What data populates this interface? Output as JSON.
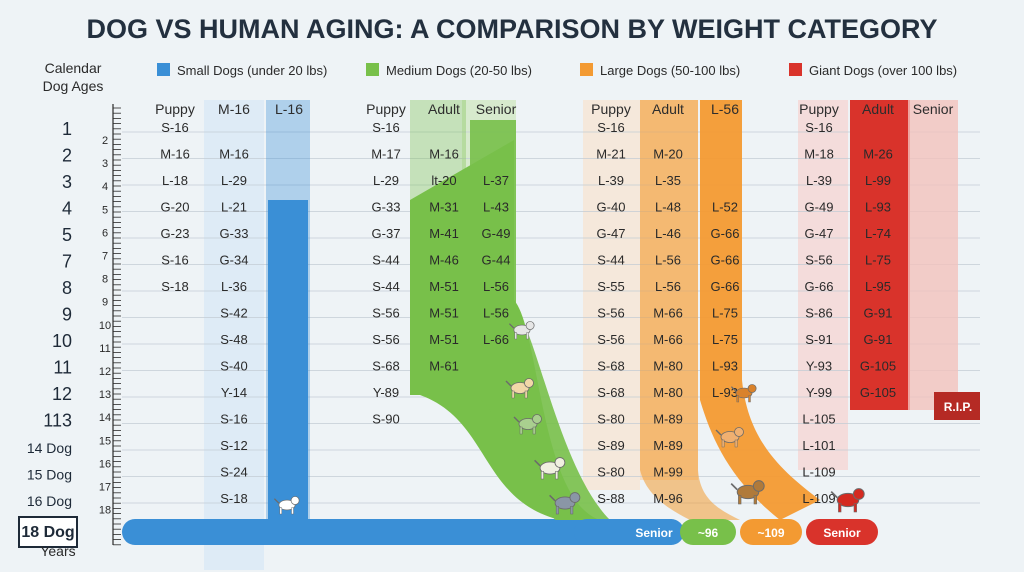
{
  "chart_data": {
    "type": "table",
    "title": "DOG VS HUMAN AGING: A COMPARISON BY WEIGHT CATEGORY",
    "y_axis_label": [
      "Calendar",
      "Dog Ages"
    ],
    "y_axis_bottom": [
      "18 Dog",
      "Years"
    ],
    "row_labels": [
      "1",
      "2",
      "3",
      "4",
      "5",
      "7",
      "8",
      "9",
      "10",
      "11",
      "12",
      "113",
      "14 Dog",
      "15 Dog",
      "16 Dog"
    ],
    "ruler_ticks": [
      "2",
      "3",
      "4",
      "5",
      "6",
      "7",
      "8",
      "9",
      "10",
      "11",
      "12",
      "13",
      "14",
      "15",
      "16",
      "17",
      "18"
    ],
    "legend": [
      {
        "label": "Small Dogs (under 20 lbs)",
        "color": "#3a8fd6"
      },
      {
        "label": "Medium Dogs (20-50 lbs)",
        "color": "#78c04a"
      },
      {
        "label": "Large Dogs (50-100 lbs)",
        "color": "#f39a32"
      },
      {
        "label": "Giant Dogs (over 100 lbs)",
        "color": "#d9332b"
      }
    ],
    "groups": [
      {
        "name": "Small Dogs (under 20 lbs)",
        "color": "#3a8fd6",
        "columns": [
          {
            "header": "Puppy",
            "values": [
              "S-16",
              "M-16",
              "L-18",
              "G-20",
              "G-23",
              "S-16",
              "S-18"
            ]
          },
          {
            "header": "M-16",
            "values": [
              "",
              "M-16",
              "L-29",
              "L-21",
              "G-33",
              "G-34",
              "L-36",
              "S-42",
              "S-48",
              "S-40",
              "Y-14",
              "S-16",
              "S-12",
              "S-24",
              "S-18"
            ]
          },
          {
            "header": "L-16",
            "values": []
          }
        ]
      },
      {
        "name": "Medium Dogs (20-50 lbs)",
        "color": "#78c04a",
        "columns": [
          {
            "header": "Puppy",
            "values": [
              "S-16",
              "M-17",
              "L-29",
              "G-33",
              "G-37",
              "S-44",
              "S-44",
              "S-56",
              "S-56",
              "S-68",
              "Y-89",
              "S-90"
            ]
          },
          {
            "header": "Adult",
            "values": [
              "",
              "M-16",
              "lt-20",
              "M-31",
              "M-41",
              "M-46",
              "M-51",
              "M-51",
              "M-51",
              "M-61"
            ]
          },
          {
            "header": "Senior",
            "values": [
              "",
              "",
              "L-37",
              "L-43",
              "G-49",
              "G-44",
              "L-56",
              "L-56",
              "L-66"
            ]
          }
        ]
      },
      {
        "name": "Large Dogs (50-100 lbs)",
        "color": "#f39a32",
        "columns": [
          {
            "header": "Puppy",
            "values": [
              "S-16",
              "M-21",
              "L-39",
              "G-40",
              "G-47",
              "S-44",
              "S-55",
              "S-56",
              "S-56",
              "S-68",
              "S-68",
              "S-80",
              "S-89",
              "S-80",
              "S-88"
            ]
          },
          {
            "header": "Adult",
            "values": [
              "",
              "M-20",
              "L-35",
              "L-48",
              "L-46",
              "L-56",
              "L-56",
              "M-66",
              "M-66",
              "M-80",
              "M-80",
              "M-89",
              "M-89",
              "M-99",
              "M-96"
            ]
          },
          {
            "header": "L-56",
            "values": [
              "",
              "",
              "",
              "L-52",
              "G-66",
              "G-66",
              "G-66",
              "L-75",
              "L-75",
              "L-93",
              "L-93"
            ]
          }
        ]
      },
      {
        "name": "Giant Dogs (over 100 lbs)",
        "color": "#d9332b",
        "columns": [
          {
            "header": "Puppy",
            "values": [
              "S-16",
              "M-18",
              "L-39",
              "G-49",
              "G-47",
              "S-56",
              "G-66",
              "S-86",
              "S-91",
              "Y-93",
              "Y-99",
              "L-105",
              "L-101",
              "L-109",
              "L-109"
            ]
          },
          {
            "header": "Adult",
            "values": [
              "",
              "M-26",
              "L-99",
              "L-93",
              "L-74",
              "L-75",
              "L-95",
              "G-91",
              "G-91",
              "G-105",
              "G-105"
            ]
          },
          {
            "header": "Senior",
            "values": []
          }
        ]
      }
    ],
    "bottom_labels": [
      "Senior",
      "~96",
      "~109",
      "Senior"
    ],
    "end_label": "R.I.P."
  },
  "icons": [
    "small-dog-icon",
    "medium-dog-icon",
    "large-dog-icon",
    "giant-dog-icon"
  ]
}
